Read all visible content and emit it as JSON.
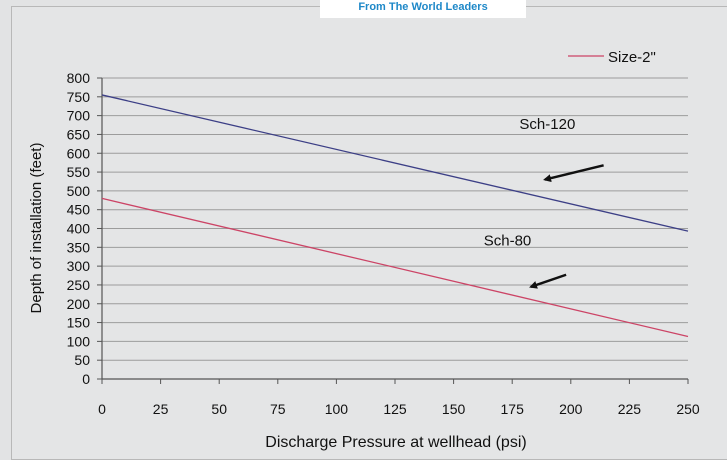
{
  "banner": {
    "tagline": "From The World Leaders"
  },
  "chart_data": {
    "type": "line",
    "xlabel": "Discharge Pressure at wellhead (psi)",
    "ylabel": "Depth of installation (feet)",
    "xlim": [
      0,
      250
    ],
    "ylim": [
      0,
      800
    ],
    "x_ticks": [
      0,
      25,
      50,
      75,
      100,
      125,
      150,
      175,
      200,
      225,
      250
    ],
    "y_ticks": [
      0,
      50,
      100,
      150,
      200,
      250,
      300,
      350,
      400,
      450,
      500,
      550,
      600,
      650,
      700,
      750,
      800
    ],
    "grid": "horizontal",
    "legend": {
      "position": "top-right",
      "entries": [
        "Size-2\""
      ]
    },
    "series": [
      {
        "name": "Sch-120",
        "color": "#3c3f86",
        "x": [
          0,
          250
        ],
        "y": [
          755,
          393
        ]
      },
      {
        "name": "Sch-80",
        "color": "#cc4466",
        "x": [
          0,
          250
        ],
        "y": [
          480,
          113
        ]
      }
    ],
    "annotations": [
      {
        "text": "Sch-120",
        "x": 190,
        "y": 665
      },
      {
        "text": "Sch-80",
        "x": 173,
        "y": 355
      }
    ],
    "arrows": [
      {
        "from": [
          214,
          568
        ],
        "to": [
          189,
          530
        ]
      },
      {
        "from": [
          198,
          277
        ],
        "to": [
          183,
          245
        ]
      }
    ]
  }
}
